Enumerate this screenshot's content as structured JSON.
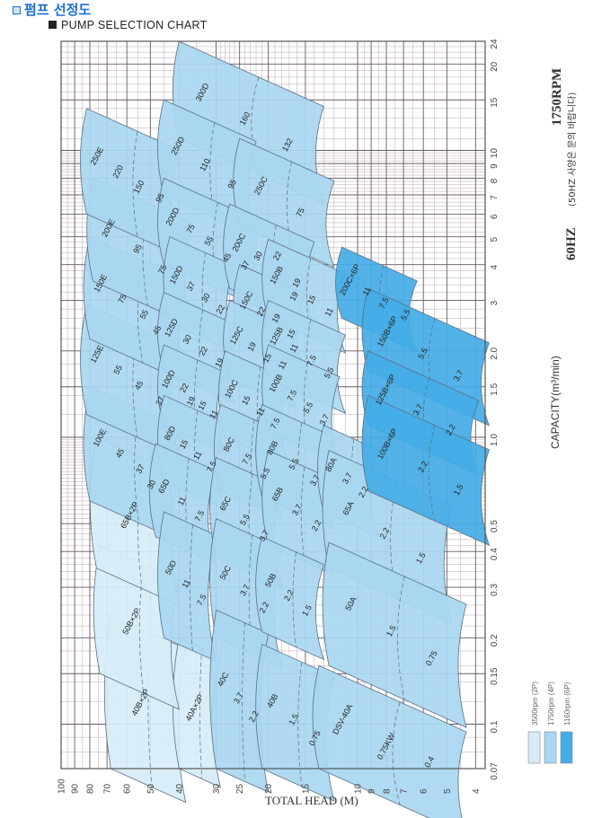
{
  "header": {
    "title": "펌프 선정도",
    "subtitle": "PUMP SELECTION CHART"
  },
  "side": {
    "rpm": "1750RPM",
    "freq": "60HZ",
    "note": "(50HZ 사양은 문의 바랍니다)"
  },
  "colors": {
    "p2": "#d6edf7",
    "p4": "#a9d7f0",
    "p6": "#44ace6",
    "grid": "#b9a9b0",
    "edge": "#5a6f86"
  },
  "legend": [
    {
      "label": "3500rpm  (2P)",
      "series": "p2"
    },
    {
      "label": "1750rpm  (4P)",
      "series": "p4"
    },
    {
      "label": "1160rpm  (6P)",
      "series": "p6"
    }
  ],
  "chart_data": {
    "type": "area",
    "title": "PUMP SELECTION CHART",
    "xlabel": "TOTAL HEAD (M)",
    "ylabel": "CAPACITY(m³/min)",
    "x_scale": "log",
    "y_scale": "log",
    "xlim": [
      100,
      4
    ],
    "ylim": [
      0.07,
      24
    ],
    "grid": true,
    "legend_position": "bottom-right",
    "x_ticks": [
      "100",
      "90",
      "80",
      "70",
      "60",
      "50",
      "40",
      "30",
      "25",
      "20",
      "15",
      "10",
      "9",
      "8",
      "7",
      "6",
      "5",
      "4"
    ],
    "y_ticks": [
      "0.07",
      "0.1",
      "0.15",
      "0.2",
      "0.3",
      "0.4",
      "0.5",
      "1.0",
      "1.5",
      "2.0",
      "3",
      "4",
      "5",
      "6",
      "7",
      "8",
      "9",
      "10",
      "15",
      "20",
      "24"
    ],
    "pumps": [
      {
        "model": "40B×2P",
        "series": "p2",
        "head": [
          68,
          38
        ],
        "capacity": [
          0.07,
          0.24
        ],
        "kw": []
      },
      {
        "model": "40A×2P",
        "series": "p2",
        "head": [
          40,
          29
        ],
        "capacity": [
          0.07,
          0.2
        ],
        "kw": []
      },
      {
        "model": "50B×2P",
        "series": "p2",
        "head": [
          74,
          40
        ],
        "capacity": [
          0.15,
          0.42
        ],
        "kw": []
      },
      {
        "model": "65B×2P",
        "series": "p2",
        "head": [
          76,
          40
        ],
        "capacity": [
          0.35,
          1.0
        ],
        "kw": []
      },
      {
        "model": "100E",
        "series": "p4",
        "head": [
          80,
          40
        ],
        "capacity": [
          0.6,
          1.5
        ],
        "kw": [
          "45",
          "37",
          "30"
        ]
      },
      {
        "model": "125E",
        "series": "p4",
        "head": [
          82,
          40
        ],
        "capacity": [
          1.2,
          2.9
        ],
        "kw": [
          "55",
          "45",
          "37"
        ]
      },
      {
        "model": "150E",
        "series": "p4",
        "head": [
          80,
          38
        ],
        "capacity": [
          2.2,
          5.0
        ],
        "kw": [
          "75",
          "55",
          "45"
        ]
      },
      {
        "model": "200E",
        "series": "p4",
        "head": [
          78,
          36
        ],
        "capacity": [
          3.5,
          8.0
        ],
        "kw": [
          "95",
          "75"
        ]
      },
      {
        "model": "250E",
        "series": "p4",
        "head": [
          82,
          40
        ],
        "capacity": [
          6,
          14
        ],
        "kw": [
          "220",
          "150",
          "95"
        ]
      },
      {
        "model": "300D",
        "series": "p4",
        "head": [
          40,
          13
        ],
        "capacity": [
          11,
          24
        ],
        "kw": [
          "160",
          "132"
        ]
      },
      {
        "model": "250D",
        "series": "p4",
        "head": [
          45,
          22
        ],
        "capacity": [
          7,
          15
        ],
        "kw": [
          "110",
          "95"
        ]
      },
      {
        "model": "200D",
        "series": "p4",
        "head": [
          45,
          21
        ],
        "capacity": [
          4,
          8
        ],
        "kw": [
          "75",
          "55",
          "45",
          "37"
        ]
      },
      {
        "model": "150D",
        "series": "p4",
        "head": [
          43,
          26
        ],
        "capacity": [
          2.5,
          5
        ],
        "kw": [
          "37",
          "30",
          "22"
        ]
      },
      {
        "model": "125D",
        "series": "p4",
        "head": [
          45,
          26
        ],
        "capacity": [
          1.7,
          3.2
        ],
        "kw": [
          "30",
          "22",
          "19"
        ]
      },
      {
        "model": "100D",
        "series": "p4",
        "head": [
          45,
          28
        ],
        "capacity": [
          1.1,
          2.1
        ],
        "kw": [
          "22",
          "19",
          "15",
          "11"
        ]
      },
      {
        "model": "80D",
        "series": "p4",
        "head": [
          45,
          28
        ],
        "capacity": [
          0.7,
          1.4
        ],
        "kw": [
          "15",
          "11",
          "7.5"
        ]
      },
      {
        "model": "65D",
        "series": "p4",
        "head": [
          48,
          30
        ],
        "capacity": [
          0.45,
          0.95
        ],
        "kw": [
          "11",
          "7.5"
        ]
      },
      {
        "model": "50D",
        "series": "p4",
        "head": [
          45,
          30
        ],
        "capacity": [
          0.2,
          0.55
        ],
        "kw": [
          "11",
          "7.5"
        ]
      },
      {
        "model": "250C",
        "series": "p4",
        "head": [
          25,
          12
        ],
        "capacity": [
          5.5,
          11
        ],
        "kw": [
          "75"
        ]
      },
      {
        "model": "200C",
        "series": "p4",
        "head": [
          27,
          14
        ],
        "capacity": [
          3.3,
          6.5
        ],
        "kw": [
          "30",
          "22",
          "19"
        ]
      },
      {
        "model": "150C",
        "series": "p4",
        "head": [
          25,
          15
        ],
        "capacity": [
          2.1,
          4
        ],
        "kw": [
          "22",
          "19",
          "15"
        ]
      },
      {
        "model": "125C",
        "series": "p4",
        "head": [
          27,
          16
        ],
        "capacity": [
          1.6,
          3
        ],
        "kw": [
          "19",
          "15",
          "11"
        ]
      },
      {
        "model": "100C",
        "series": "p4",
        "head": [
          28,
          17
        ],
        "capacity": [
          1.0,
          2.0
        ],
        "kw": [
          "15",
          "11",
          "7.5"
        ]
      },
      {
        "model": "80C",
        "series": "p4",
        "head": [
          29,
          18
        ],
        "capacity": [
          0.65,
          1.3
        ],
        "kw": [
          "7.5",
          "5.5"
        ]
      },
      {
        "model": "65C",
        "series": "p4",
        "head": [
          30,
          18
        ],
        "capacity": [
          0.38,
          0.85
        ],
        "kw": [
          "5.5",
          "3.7"
        ]
      },
      {
        "model": "50C",
        "series": "p4",
        "head": [
          30,
          18
        ],
        "capacity": [
          0.2,
          0.52
        ],
        "kw": [
          "3.7",
          "2.2"
        ]
      },
      {
        "model": "40C",
        "series": "p4",
        "head": [
          30,
          20
        ],
        "capacity": [
          0.07,
          0.25
        ],
        "kw": [
          "3.7",
          "2.2"
        ]
      },
      {
        "model": "150B",
        "series": "p4",
        "head": [
          20,
          11
        ],
        "capacity": [
          2.6,
          4.9
        ],
        "kw": [
          "19",
          "15",
          "11"
        ]
      },
      {
        "model": "125B",
        "series": "p4",
        "head": [
          20,
          11
        ],
        "capacity": [
          1.6,
          3.0
        ],
        "kw": [
          "11",
          "7.5",
          "5.5"
        ]
      },
      {
        "model": "100B",
        "series": "p4",
        "head": [
          20,
          11.5
        ],
        "capacity": [
          1.05,
          2.1
        ],
        "kw": [
          "7.5",
          "5.5",
          "3.7"
        ]
      },
      {
        "model": "80B",
        "series": "p4",
        "head": [
          21,
          12
        ],
        "capacity": [
          0.62,
          1.3
        ],
        "kw": [
          "5.5",
          "3.7"
        ]
      },
      {
        "model": "65B",
        "series": "p4",
        "head": [
          20,
          12
        ],
        "capacity": [
          0.42,
          0.9
        ],
        "kw": [
          "3.7",
          "2.2"
        ]
      },
      {
        "model": "50B",
        "series": "p4",
        "head": [
          21,
          13
        ],
        "capacity": [
          0.21,
          0.45
        ],
        "kw": [
          "2.2",
          "1.5"
        ]
      },
      {
        "model": "40B",
        "series": "p4",
        "head": [
          21,
          12
        ],
        "capacity": [
          0.07,
          0.19
        ],
        "kw": [
          "1.5",
          "0.75"
        ]
      },
      {
        "model": "80A",
        "series": "p4",
        "head": [
          13,
          8.5
        ],
        "capacity": [
          0.55,
          1.1
        ],
        "kw": [
          "3.7",
          "2.2"
        ]
      },
      {
        "model": "65A",
        "series": "p4",
        "head": [
          12.5,
          4.8
        ],
        "capacity": [
          0.35,
          0.9
        ],
        "kw": [
          "2.2",
          "1.5"
        ]
      },
      {
        "model": "50A",
        "series": "p4",
        "head": [
          12.5,
          4.3
        ],
        "capacity": [
          0.16,
          0.43
        ],
        "kw": [
          "1.5",
          "0.75"
        ]
      },
      {
        "model": "DSV-40A",
        "series": "p4",
        "head": [
          13.5,
          4.3
        ],
        "capacity": [
          0.07,
          0.16
        ],
        "kw": [
          "0.75KW",
          "0.4"
        ]
      },
      {
        "model": "200C×6P",
        "series": "p6",
        "head": [
          11.3,
          6.3
        ],
        "capacity": [
          2.6,
          4.6
        ],
        "kw": [
          "11",
          "7.5",
          "5.5"
        ]
      },
      {
        "model": "150B×6P",
        "series": "p6",
        "head": [
          9.2,
          3.6
        ],
        "capacity": [
          1.7,
          3.3
        ],
        "kw": [
          "5.5",
          "3.7"
        ]
      },
      {
        "model": "125B×6P",
        "series": "p6",
        "head": [
          9.2,
          3.9
        ],
        "capacity": [
          1.1,
          2.0
        ],
        "kw": [
          "3.7",
          "2.2"
        ]
      },
      {
        "model": "100B×6P",
        "series": "p6",
        "head": [
          9.2,
          3.6
        ],
        "capacity": [
          0.65,
          1.4
        ],
        "kw": [
          "2.2",
          "1.5"
        ]
      }
    ]
  }
}
